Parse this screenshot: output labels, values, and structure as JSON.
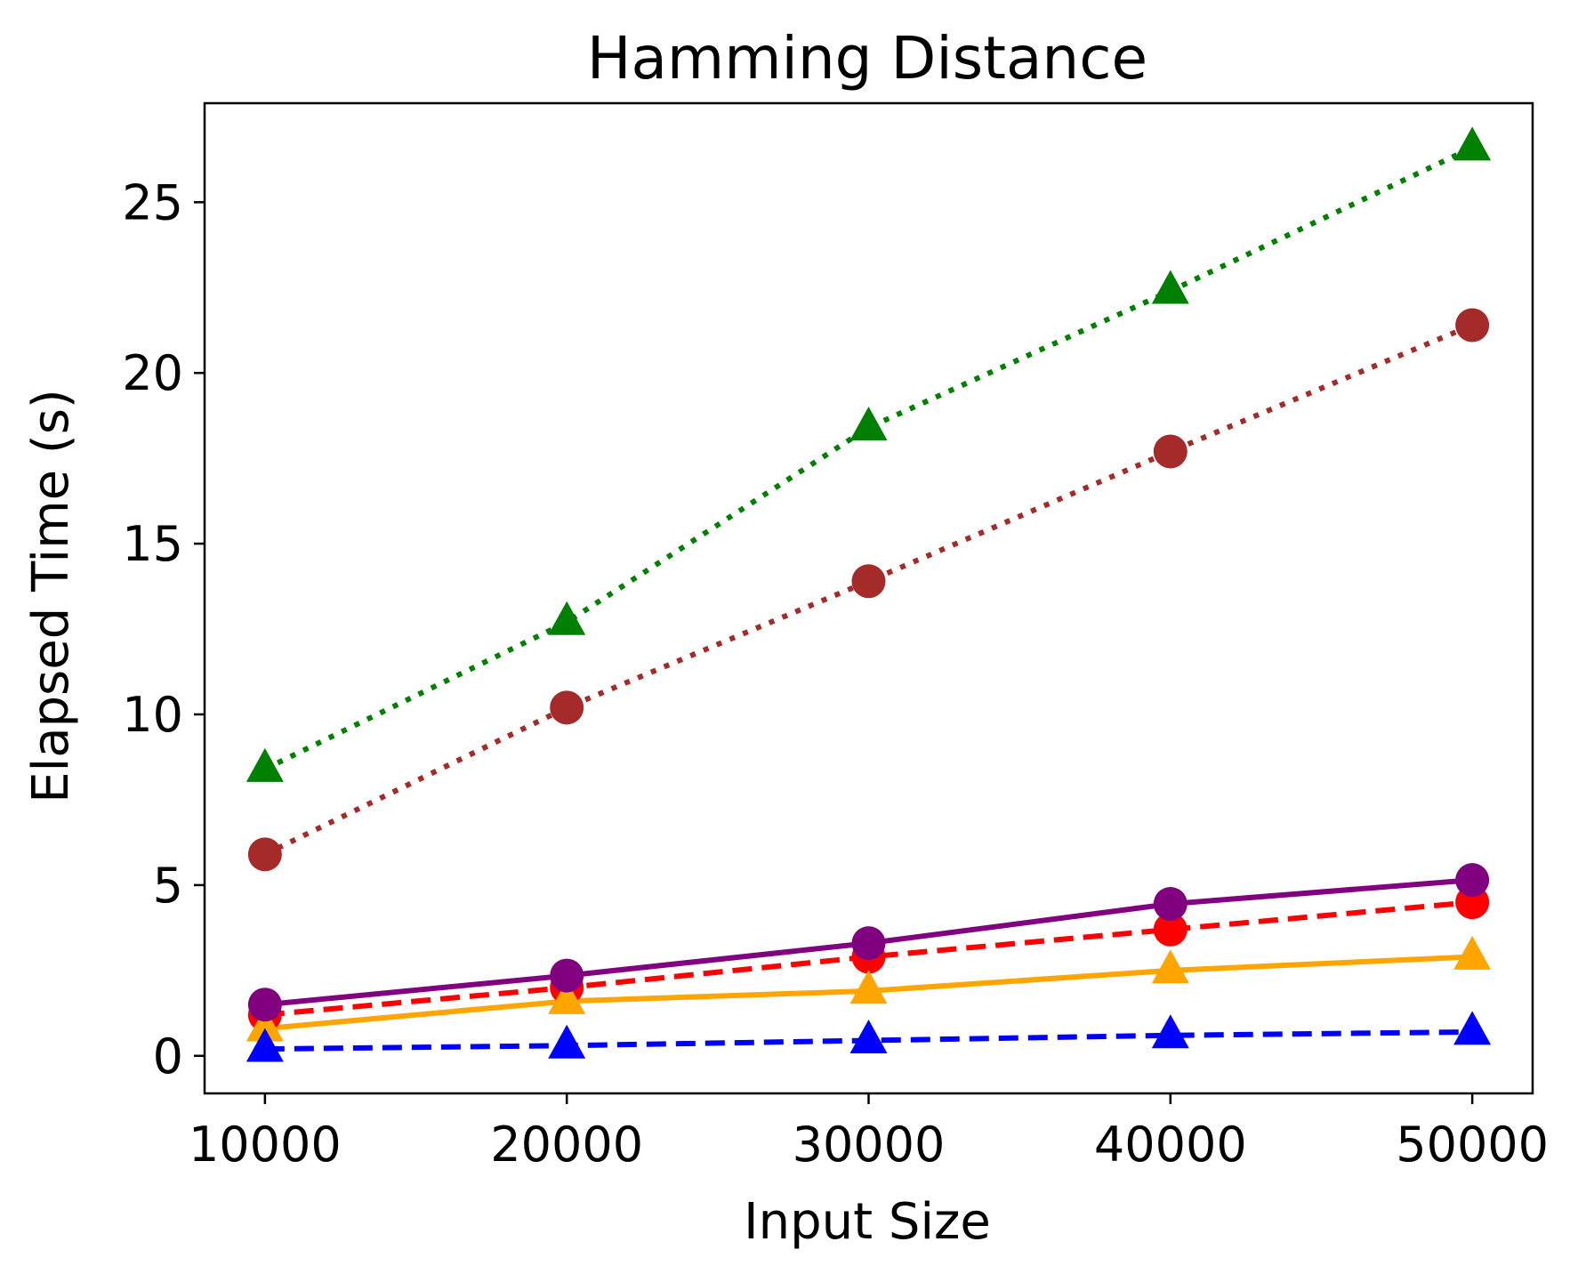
{
  "chart_data": {
    "type": "line",
    "title": "Hamming Distance",
    "xlabel": "Input Size",
    "ylabel": "Elapsed Time (s)",
    "x": [
      10000,
      20000,
      30000,
      40000,
      50000
    ],
    "x_ticks": [
      "10000",
      "20000",
      "30000",
      "40000",
      "50000"
    ],
    "y_ticks": [
      "0",
      "5",
      "10",
      "15",
      "20",
      "25"
    ],
    "xlim": [
      8000,
      52000
    ],
    "ylim": [
      -1.1,
      27.9
    ],
    "grid": false,
    "legend": false,
    "series": [
      {
        "color": "#008000",
        "line_style": "dotted",
        "marker": "triangle",
        "values": [
          8.4,
          12.7,
          18.4,
          22.4,
          26.6
        ]
      },
      {
        "color": "#a52a2a",
        "line_style": "dotted",
        "marker": "circle",
        "values": [
          5.9,
          10.2,
          13.9,
          17.7,
          21.4
        ]
      },
      {
        "color": "#ff0000",
        "line_style": "dashed",
        "marker": "circle",
        "values": [
          1.2,
          2.0,
          2.9,
          3.7,
          4.5
        ]
      },
      {
        "color": "#ffa500",
        "line_style": "solid",
        "marker": "triangle",
        "values": [
          0.8,
          1.6,
          1.9,
          2.5,
          2.9
        ]
      },
      {
        "color": "#0000ff",
        "line_style": "dashed",
        "marker": "triangle",
        "values": [
          0.2,
          0.3,
          0.45,
          0.6,
          0.7
        ]
      },
      {
        "color": "#800080",
        "line_style": "solid",
        "marker": "circle",
        "values": [
          1.5,
          2.35,
          3.3,
          4.45,
          5.15
        ]
      }
    ]
  }
}
